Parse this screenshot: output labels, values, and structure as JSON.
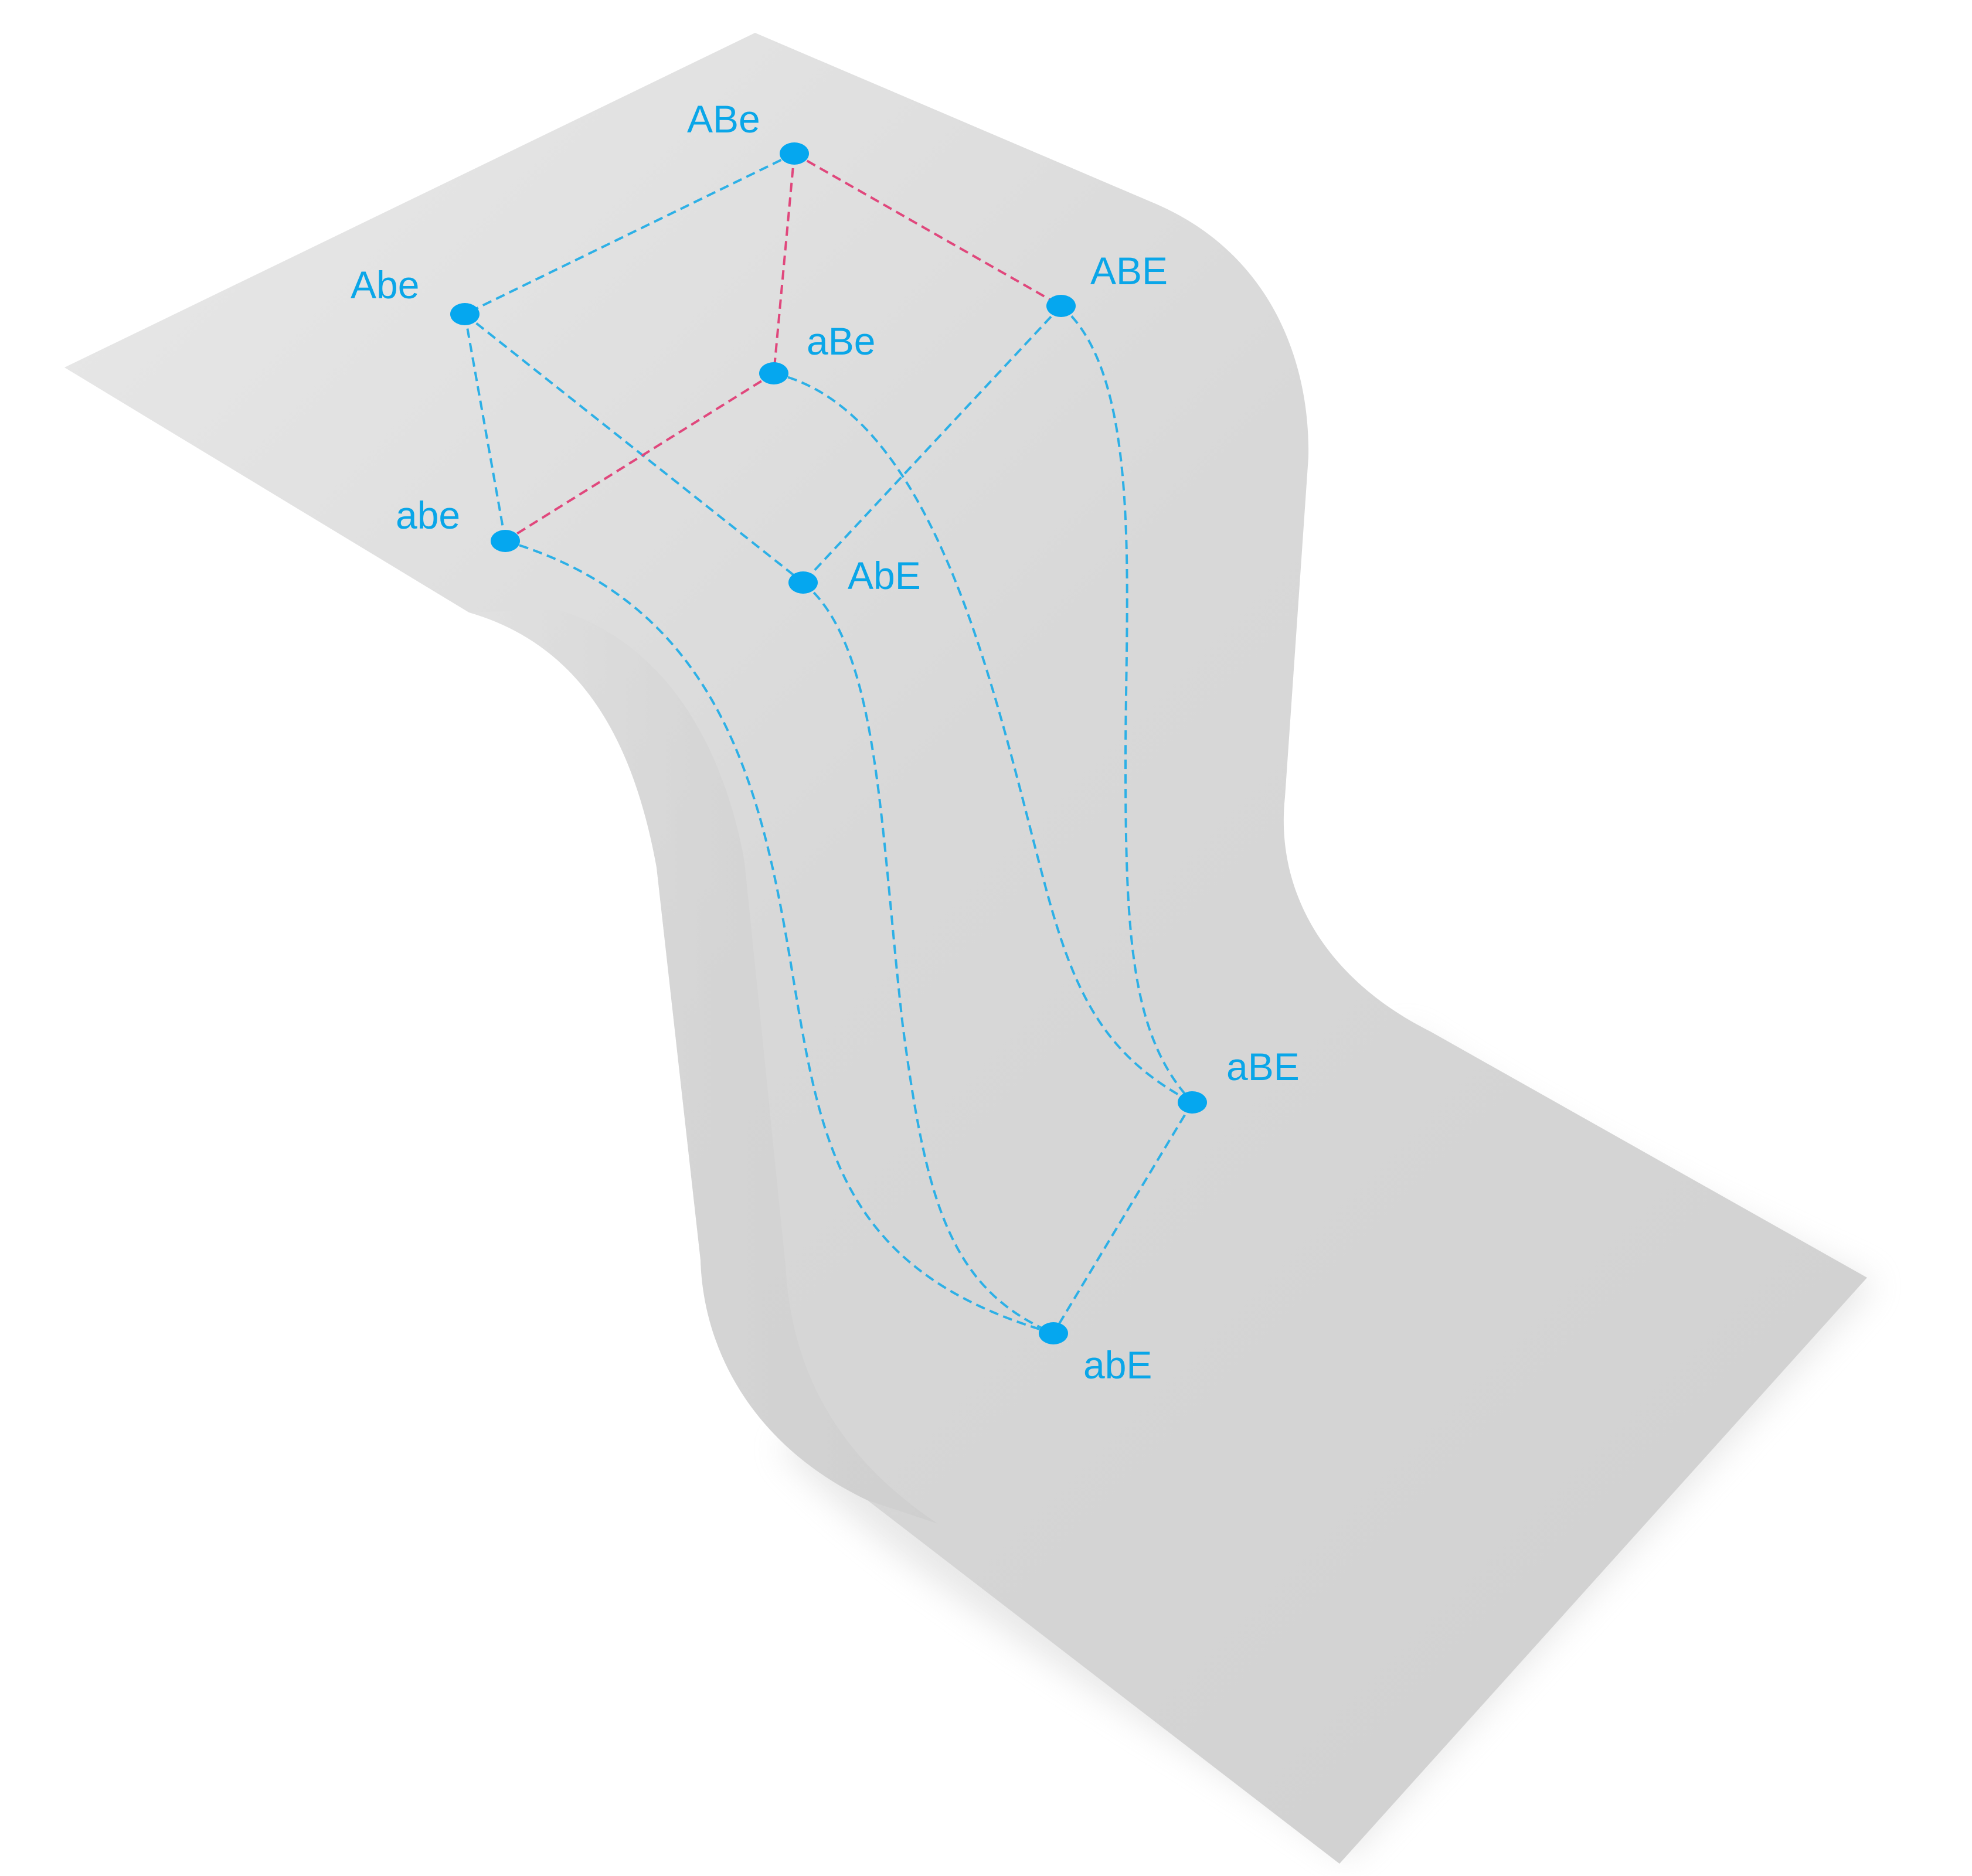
{
  "colors": {
    "background": "#ffffff",
    "surface_light": "#e6e6e6",
    "surface_dark": "#cdcdcd",
    "node": "#05a7ef",
    "edge_blue": "#2db0e6",
    "edge_pink": "#e0477c",
    "label": "#0aa6e8"
  },
  "nodes": [
    {
      "id": "ABe",
      "label": "ABe"
    },
    {
      "id": "Abe",
      "label": "Abe"
    },
    {
      "id": "ABE",
      "label": "ABE"
    },
    {
      "id": "aBe",
      "label": "aBe"
    },
    {
      "id": "abe",
      "label": "abe"
    },
    {
      "id": "AbE",
      "label": "AbE"
    },
    {
      "id": "aBE",
      "label": "aBE"
    },
    {
      "id": "abE",
      "label": "abE"
    }
  ],
  "edges": [
    {
      "from": "ABe",
      "to": "Abe",
      "color": "blue"
    },
    {
      "from": "ABe",
      "to": "aBe",
      "color": "pink"
    },
    {
      "from": "ABe",
      "to": "ABE",
      "color": "pink"
    },
    {
      "from": "Abe",
      "to": "abe",
      "color": "blue"
    },
    {
      "from": "Abe",
      "to": "AbE",
      "color": "blue"
    },
    {
      "from": "aBe",
      "to": "abe",
      "color": "pink"
    },
    {
      "from": "ABE",
      "to": "AbE",
      "color": "blue"
    },
    {
      "from": "ABE",
      "to": "aBE",
      "color": "blue"
    },
    {
      "from": "aBe",
      "to": "aBE",
      "color": "blue"
    },
    {
      "from": "abe",
      "to": "abE",
      "color": "blue"
    },
    {
      "from": "AbE",
      "to": "abE",
      "color": "blue"
    },
    {
      "from": "aBE",
      "to": "abE",
      "color": "blue"
    }
  ]
}
